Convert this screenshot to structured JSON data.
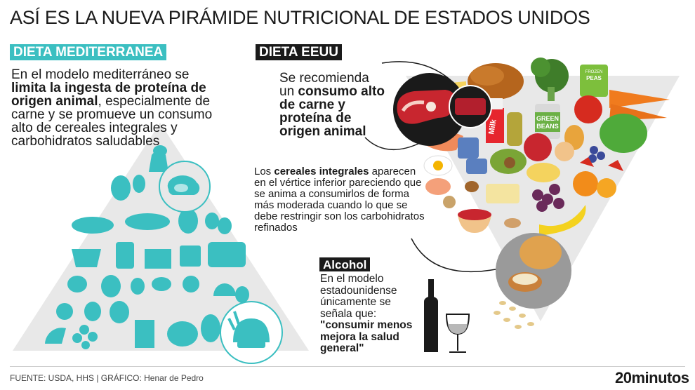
{
  "title": "ASÍ ES LA NUEVA PIRÁMIDE NUTRICIONAL DE ESTADOS UNIDOS",
  "mediterranean": {
    "tag": "DIETA MEDITERRANEA",
    "text_1": "En el modelo mediterráneo se ",
    "text_bold": "limita la ingesta de proteína de origen animal",
    "text_2": ", especialmente de carne y se promueve un consumo alto de cereales integrales y carbohidratos saludables"
  },
  "usa": {
    "tag": "DIETA EEUU",
    "text_1": "Se recomienda un ",
    "text_bold": "consumo alto de carne y proteína de origen animal"
  },
  "cereals": {
    "text_1": "Los ",
    "text_bold": "cereales integrales",
    "text_2": " aparecen en el vértice inferior pareciendo que se anima a consumirlos de forma más moderada cuando lo que se debe restringir son los carbohidratos refinados"
  },
  "alcohol": {
    "tag": "Alcohol",
    "text_1": "En el modelo estadounidense únicamente se señala que: ",
    "text_bold": "\"consumir menos mejora la salud general\""
  },
  "product_labels": {
    "milk": "Milk",
    "green_beans": "GREEN BEANS",
    "frozen_peas": "FROZEN PEAS"
  },
  "footer": {
    "source": "FUENTE: USDA, HHS  |  GRÁFICO: Henar de Pedro",
    "brand": "20minutos"
  },
  "colors": {
    "teal": "#3bbfc1",
    "pyramid_gray": "#e8e8e8",
    "dark": "#1a1a1a",
    "meat_red": "#c8262f"
  }
}
